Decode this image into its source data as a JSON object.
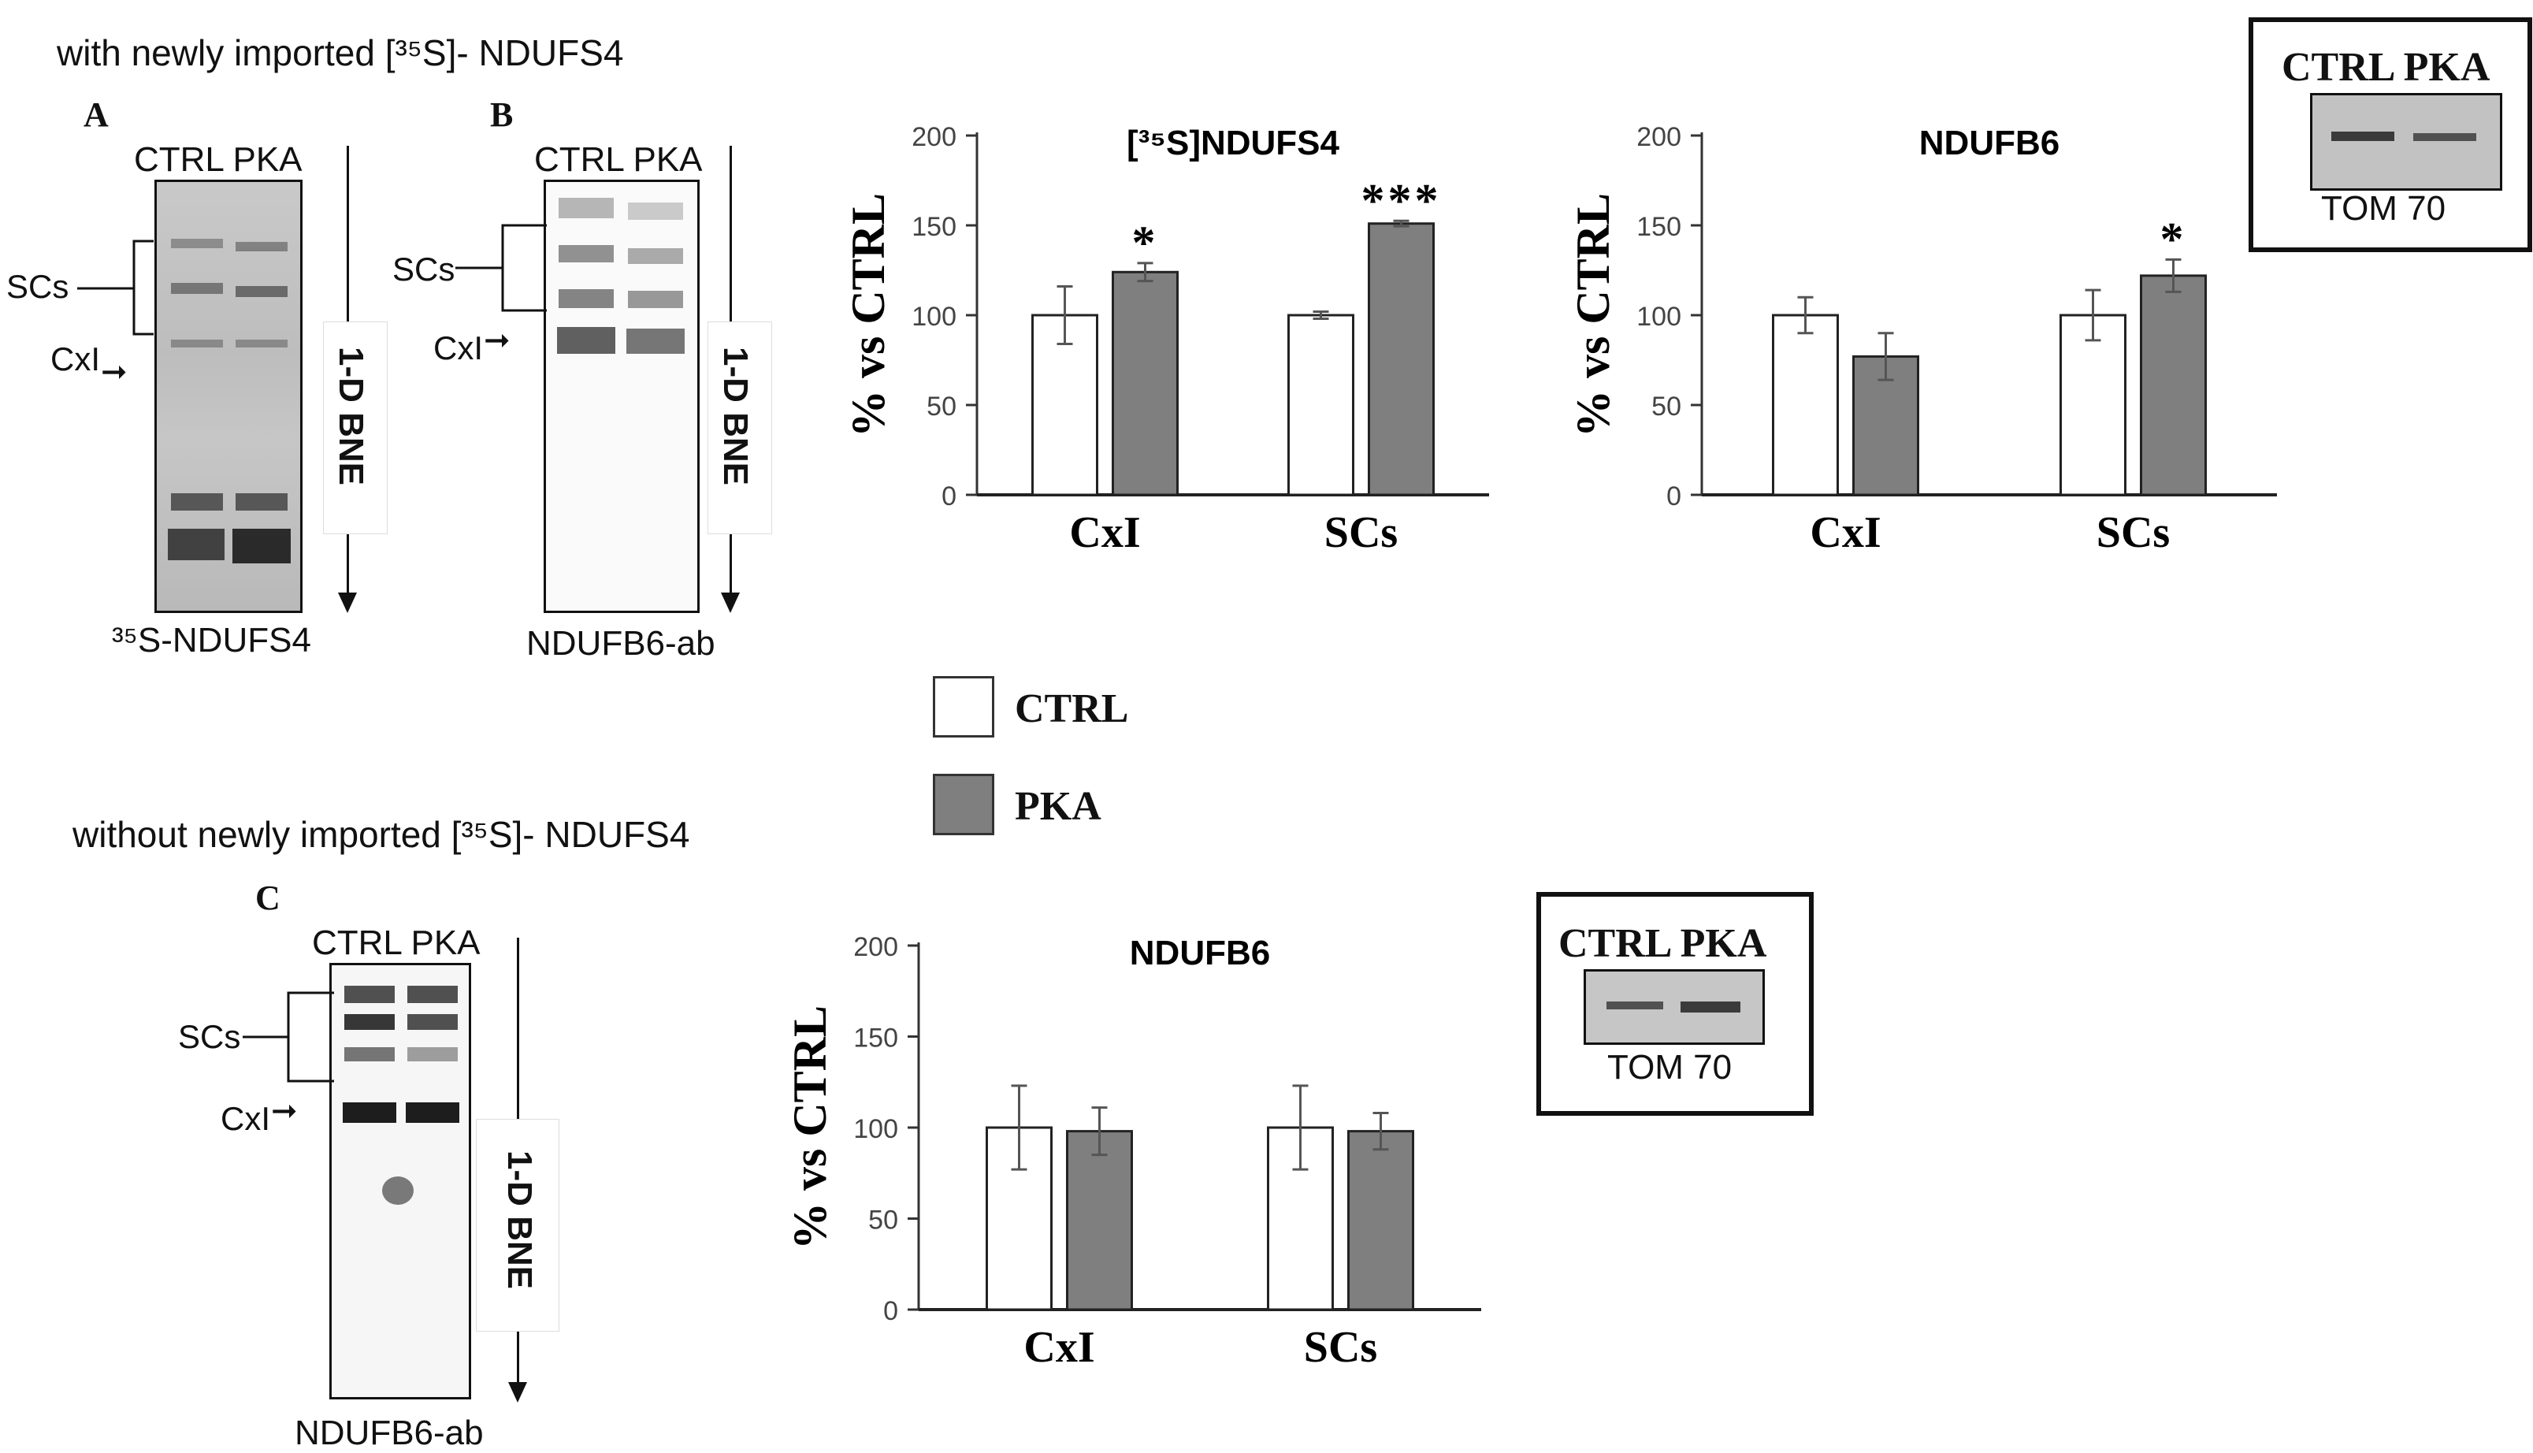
{
  "figure": {
    "heading_top": "with newly imported [³⁵S]- NDUFS4",
    "heading_bottom": "without newly imported [³⁵S]- NDUFS4",
    "panels": {
      "A": {
        "letter": "A",
        "lanes": "CTRL PKA",
        "scs": "SCs",
        "cxi": "CxI",
        "bne": "1-D BNE",
        "caption": "³⁵S-NDUFS4"
      },
      "B": {
        "letter": "B",
        "lanes": "CTRL PKA",
        "scs": "SCs",
        "cxi": "CxI",
        "bne": "1-D BNE",
        "caption": "NDUFB6-ab"
      },
      "C": {
        "letter": "C",
        "lanes": "CTRL PKA",
        "scs": "SCs",
        "cxi": "CxI",
        "bne": "1-D BNE",
        "caption": "NDUFB6-ab"
      }
    },
    "insets": [
      {
        "lanes": "CTRL PKA",
        "label": "TOM 70"
      },
      {
        "lanes": "CTRL PKA",
        "label": "TOM 70"
      }
    ],
    "legend": [
      {
        "label": "CTRL",
        "color": "#ffffff"
      },
      {
        "label": "PKA",
        "color": "#7f7f7f"
      }
    ]
  },
  "chart_data": [
    {
      "type": "bar",
      "title": "[³⁵S]NDUFS4",
      "ylabel": "% vs CTRL",
      "categories": [
        "CxI",
        "SCs"
      ],
      "ylim": [
        0,
        200
      ],
      "yticks": [
        0,
        50,
        100,
        150,
        200
      ],
      "series": [
        {
          "name": "CTRL",
          "values": [
            100,
            100
          ],
          "errors": [
            16,
            2
          ],
          "color": "#ffffff"
        },
        {
          "name": "PKA",
          "values": [
            124,
            151
          ],
          "errors": [
            5,
            1.5
          ],
          "color": "#7f7f7f"
        }
      ],
      "significance": [
        {
          "category": "SCs",
          "series": "PKA",
          "label": "***"
        },
        {
          "category": "CxI",
          "series": "PKA",
          "label": "*"
        }
      ]
    },
    {
      "type": "bar",
      "title": "NDUFB6",
      "ylabel": "% vs CTRL",
      "categories": [
        "CxI",
        "SCs"
      ],
      "ylim": [
        0,
        200
      ],
      "yticks": [
        0,
        50,
        100,
        150,
        200
      ],
      "series": [
        {
          "name": "CTRL",
          "values": [
            100,
            100
          ],
          "errors": [
            10,
            14
          ],
          "color": "#ffffff"
        },
        {
          "name": "PKA",
          "values": [
            77,
            122
          ],
          "errors": [
            13,
            9
          ],
          "color": "#7f7f7f"
        }
      ],
      "significance": [
        {
          "category": "SCs",
          "series": "PKA",
          "label": "*"
        }
      ]
    },
    {
      "type": "bar",
      "title": "NDUFB6",
      "ylabel": "% vs CTRL",
      "categories": [
        "CxI",
        "SCs"
      ],
      "ylim": [
        0,
        200
      ],
      "yticks": [
        0,
        50,
        100,
        150,
        200
      ],
      "series": [
        {
          "name": "CTRL",
          "values": [
            100,
            100
          ],
          "errors": [
            23,
            23
          ],
          "color": "#ffffff"
        },
        {
          "name": "PKA",
          "values": [
            98,
            98
          ],
          "errors": [
            13,
            10
          ],
          "color": "#7f7f7f"
        }
      ],
      "significance": []
    }
  ]
}
